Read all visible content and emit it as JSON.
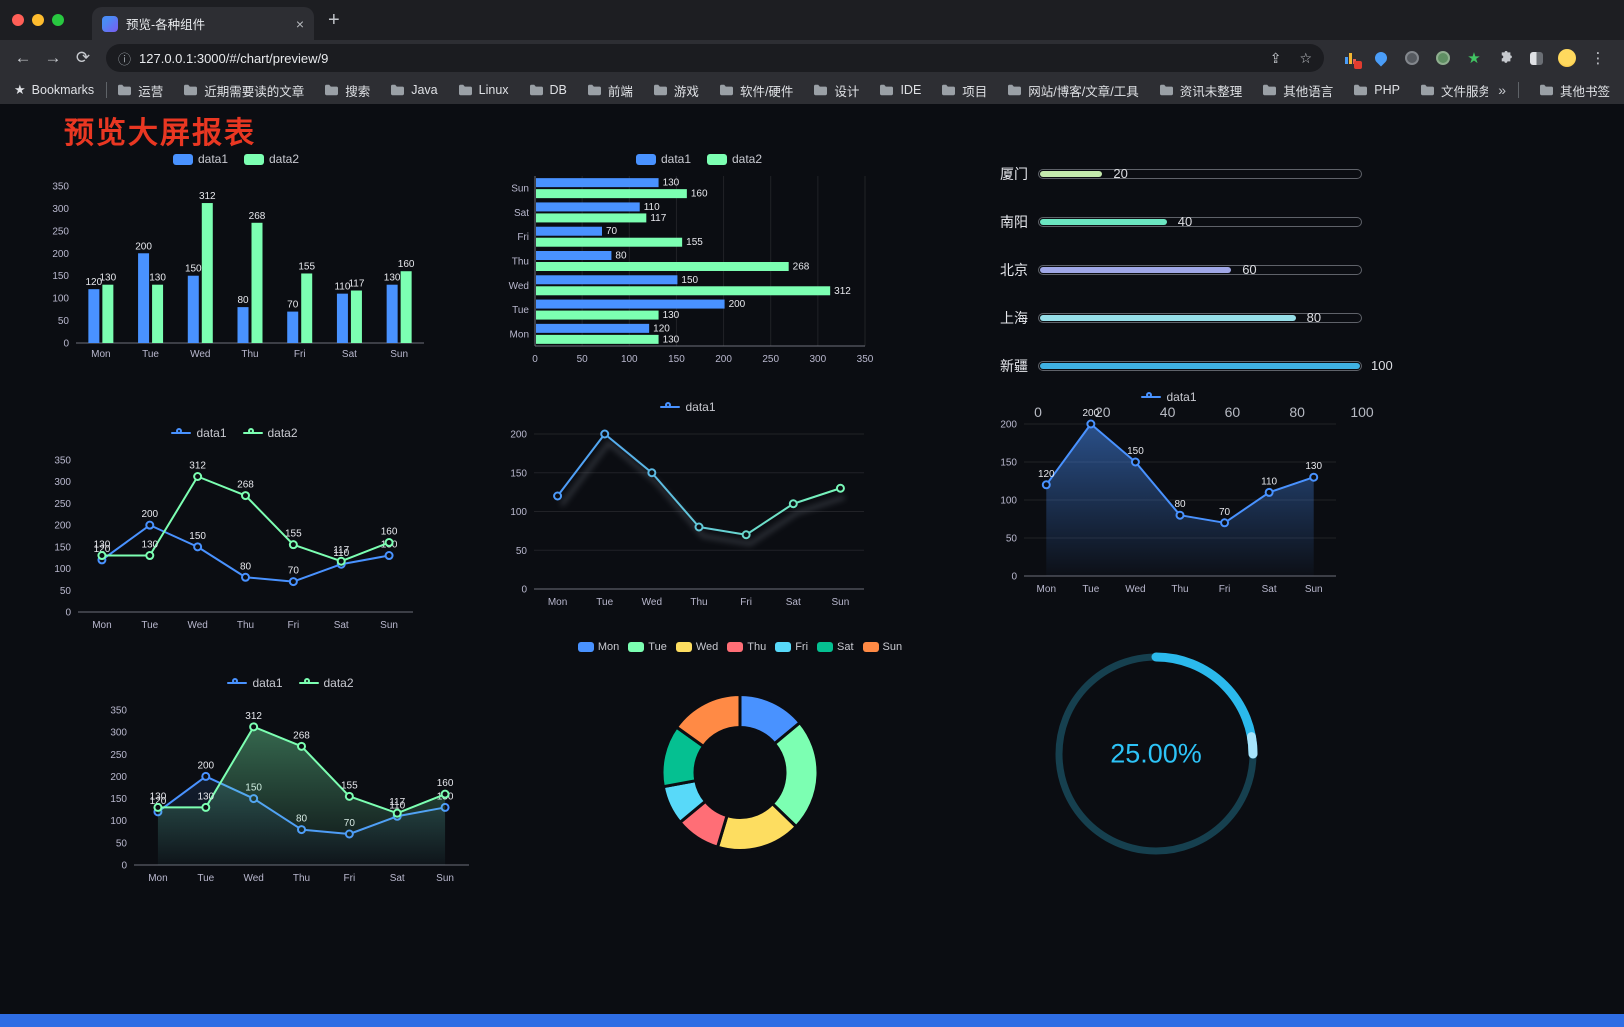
{
  "browser": {
    "tab_title": "预览-各种组件",
    "url": "127.0.0.1:3000/#/chart/preview/9",
    "icons": {
      "back": "←",
      "forward": "→",
      "reload": "⟳",
      "info": "ⓘ",
      "share": "⇪",
      "star": "☆",
      "menu": "⋮",
      "new_tab": "+",
      "close_tab": "×",
      "root_star": "★",
      "overflow": "»"
    },
    "bookmarks_root": "Bookmarks",
    "bookmarks": [
      "运营",
      "近期需要读的文章",
      "搜索",
      "Java",
      "Linux",
      "DB",
      "前端",
      "游戏",
      "软件/硬件",
      "设计",
      "IDE",
      "项目",
      "网站/博客/文章/工具",
      "资讯未整理",
      "其他语言",
      "PHP",
      "文件服务器"
    ],
    "other_bookmarks": "其他书签"
  },
  "page": {
    "title": "预览大屏报表",
    "title_color": "#e93722"
  },
  "chart_data": [
    {
      "id": "bar-vertical",
      "type": "bar",
      "categories": [
        "Mon",
        "Tue",
        "Wed",
        "Thu",
        "Fri",
        "Sat",
        "Sun"
      ],
      "series": [
        {
          "name": "data1",
          "color": "#4992ff",
          "values": [
            120,
            200,
            150,
            80,
            70,
            110,
            130
          ]
        },
        {
          "name": "data2",
          "color": "#7cffb2",
          "values": [
            130,
            130,
            312,
            268,
            155,
            117,
            160
          ]
        }
      ],
      "ylim": [
        0,
        350
      ],
      "yticks": [
        0,
        50,
        100,
        150,
        200,
        250,
        300,
        350
      ],
      "legend_position": "top",
      "grid": false
    },
    {
      "id": "bar-horizontal",
      "type": "hbar",
      "categories": [
        "Mon",
        "Tue",
        "Wed",
        "Thu",
        "Fri",
        "Sat",
        "Sun"
      ],
      "series": [
        {
          "name": "data1",
          "color": "#4992ff",
          "values": [
            120,
            200,
            150,
            80,
            70,
            110,
            130
          ]
        },
        {
          "name": "data2",
          "color": "#7cffb2",
          "values": [
            130,
            130,
            312,
            268,
            155,
            117,
            160
          ]
        }
      ],
      "xlim": [
        0,
        350
      ],
      "xticks": [
        0,
        50,
        100,
        150,
        200,
        250,
        300,
        350
      ],
      "legend_position": "top"
    },
    {
      "id": "city-progress",
      "type": "progress",
      "max": 100,
      "rows": [
        {
          "label": "厦门",
          "value": 20,
          "color": "#c4ebad"
        },
        {
          "label": "南阳",
          "value": 40,
          "color": "#6be6c1"
        },
        {
          "label": "北京",
          "value": 60,
          "color": "#a0a7e6"
        },
        {
          "label": "上海",
          "value": 80,
          "color": "#96dee8"
        },
        {
          "label": "新疆",
          "value": 100,
          "color": "#3fb1e3"
        }
      ],
      "axis": [
        0,
        20,
        40,
        60,
        80,
        100
      ]
    },
    {
      "id": "line-basic",
      "type": "line",
      "grid": false,
      "categories": [
        "Mon",
        "Tue",
        "Wed",
        "Thu",
        "Fri",
        "Sat",
        "Sun"
      ],
      "series": [
        {
          "name": "data1",
          "color": "#4992ff",
          "values": [
            120,
            200,
            150,
            80,
            70,
            110,
            130
          ],
          "labels": true
        },
        {
          "name": "data2",
          "color": "#7cffb2",
          "values": [
            130,
            130,
            312,
            268,
            155,
            117,
            160
          ],
          "labels": true
        }
      ],
      "ylim": [
        0,
        350
      ],
      "yticks": [
        0,
        50,
        100,
        150,
        200,
        250,
        300,
        350
      ]
    },
    {
      "id": "line-gradient",
      "type": "line",
      "grid": true,
      "categories": [
        "Mon",
        "Tue",
        "Wed",
        "Thu",
        "Fri",
        "Sat",
        "Sun"
      ],
      "series": [
        {
          "name": "data1",
          "gradient": [
            "#4992ff",
            "#7cffb2"
          ],
          "values": [
            120,
            200,
            150,
            80,
            70,
            110,
            130
          ],
          "labels": false,
          "shadow": true
        }
      ],
      "ylim": [
        0,
        200
      ],
      "yticks": [
        0,
        50,
        100,
        150,
        200
      ]
    },
    {
      "id": "area-basic",
      "type": "line",
      "grid": true,
      "categories": [
        "Mon",
        "Tue",
        "Wed",
        "Thu",
        "Fri",
        "Sat",
        "Sun"
      ],
      "series": [
        {
          "name": "data1",
          "color": "#4992ff",
          "values": [
            120,
            200,
            150,
            80,
            70,
            110,
            130
          ],
          "labels": true,
          "area": true,
          "area_opacity": 0.5
        }
      ],
      "ylim": [
        0,
        200
      ],
      "yticks": [
        0,
        50,
        100,
        150,
        200
      ]
    },
    {
      "id": "area-double",
      "type": "line",
      "grid": false,
      "categories": [
        "Mon",
        "Tue",
        "Wed",
        "Thu",
        "Fri",
        "Sat",
        "Sun"
      ],
      "series": [
        {
          "name": "data1",
          "color": "#4992ff",
          "values": [
            120,
            200,
            150,
            80,
            70,
            110,
            130
          ],
          "labels": true,
          "area": true,
          "area_opacity": 0.2
        },
        {
          "name": "data2",
          "color": "#7cffb2",
          "values": [
            130,
            130,
            312,
            268,
            155,
            117,
            160
          ],
          "labels": true,
          "area": true,
          "area_opacity": 0.42
        }
      ],
      "ylim": [
        0,
        350
      ],
      "yticks": [
        0,
        50,
        100,
        150,
        200,
        250,
        300,
        350
      ]
    },
    {
      "id": "pie-week",
      "type": "pie",
      "slices": [
        {
          "label": "Mon",
          "value": 120,
          "color": "#4992ff"
        },
        {
          "label": "Tue",
          "value": 200,
          "color": "#7cffb2"
        },
        {
          "label": "Wed",
          "value": 150,
          "color": "#fddd60"
        },
        {
          "label": "Thu",
          "value": 80,
          "color": "#ff6e76"
        },
        {
          "label": "Fri",
          "value": 70,
          "color": "#58d9f9"
        },
        {
          "label": "Sat",
          "value": 110,
          "color": "#05c091"
        },
        {
          "label": "Sun",
          "value": 130,
          "color": "#ff8a45"
        }
      ],
      "legend_position": "top"
    },
    {
      "id": "gauge-percent",
      "type": "gauge",
      "value": 25,
      "percent_label": "25.00%",
      "color": "#2bb9ec",
      "track_color": "#16404f"
    }
  ]
}
